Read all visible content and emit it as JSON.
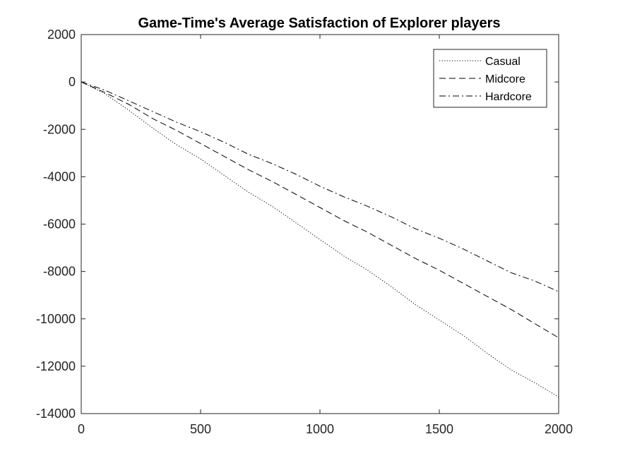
{
  "chart_data": {
    "type": "line",
    "title": "Game-Time's Average Satisfaction of Explorer players",
    "xlabel": "",
    "ylabel": "",
    "xlim": [
      0,
      2000
    ],
    "ylim": [
      -14000,
      2000
    ],
    "xticks": [
      0,
      500,
      1000,
      1500,
      2000
    ],
    "yticks": [
      2000,
      0,
      -2000,
      -4000,
      -6000,
      -8000,
      -10000,
      -12000,
      -14000
    ],
    "grid": false,
    "legend_position": "top-right",
    "series": [
      {
        "name": "Casual",
        "style": "dotted",
        "x": [
          0,
          100,
          200,
          300,
          400,
          500,
          600,
          700,
          800,
          900,
          1000,
          1100,
          1200,
          1300,
          1400,
          1500,
          1600,
          1700,
          1800,
          1900,
          2000
        ],
        "y": [
          0,
          -500,
          -1200,
          -1950,
          -2650,
          -3250,
          -3950,
          -4650,
          -5250,
          -5950,
          -6650,
          -7350,
          -7950,
          -8650,
          -9400,
          -10050,
          -10700,
          -11450,
          -12150,
          -12700,
          -13300
        ]
      },
      {
        "name": "Midcore",
        "style": "dashed",
        "x": [
          0,
          100,
          200,
          300,
          400,
          500,
          600,
          700,
          800,
          900,
          1000,
          1100,
          1200,
          1300,
          1400,
          1500,
          1600,
          1700,
          1800,
          1900,
          2000
        ],
        "y": [
          0,
          -450,
          -950,
          -1550,
          -2050,
          -2600,
          -3150,
          -3700,
          -4200,
          -4750,
          -5300,
          -5850,
          -6350,
          -6900,
          -7450,
          -7950,
          -8500,
          -9050,
          -9600,
          -10200,
          -10800
        ]
      },
      {
        "name": "Hardcore",
        "style": "dashdot",
        "x": [
          0,
          100,
          200,
          300,
          400,
          500,
          600,
          700,
          800,
          900,
          1000,
          1100,
          1200,
          1300,
          1400,
          1500,
          1600,
          1700,
          1800,
          1900,
          2000
        ],
        "y": [
          0,
          -350,
          -800,
          -1250,
          -1700,
          -2100,
          -2550,
          -3050,
          -3450,
          -3900,
          -4400,
          -4850,
          -5250,
          -5700,
          -6200,
          -6600,
          -7050,
          -7550,
          -8050,
          -8400,
          -8850
        ]
      }
    ]
  }
}
